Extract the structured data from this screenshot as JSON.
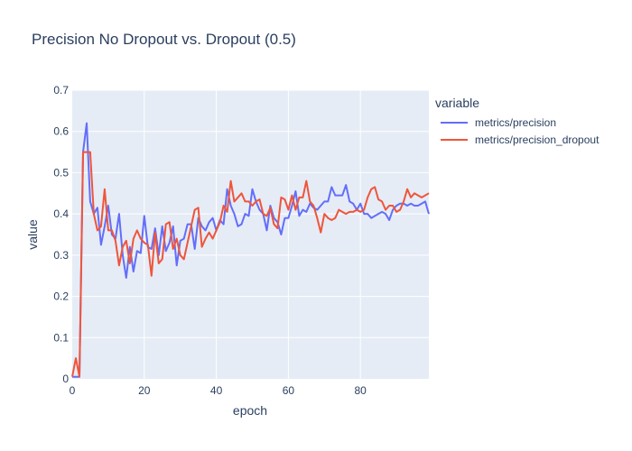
{
  "chart_data": {
    "type": "line",
    "title": "Precision No Dropout vs. Dropout (0.5)",
    "xlabel": "epoch",
    "ylabel": "value",
    "xlim": [
      0,
      99
    ],
    "ylim": [
      0,
      0.7
    ],
    "x_ticks": [
      0,
      20,
      40,
      60,
      80
    ],
    "y_ticks": [
      0,
      0.1,
      0.2,
      0.3,
      0.4,
      0.5,
      0.6,
      0.7
    ],
    "grid": true,
    "legend": {
      "title": "variable",
      "placement": "right"
    },
    "series": [
      {
        "name": "metrics/precision",
        "color": "#636efa",
        "values": [
          0.005,
          0.005,
          0.005,
          0.55,
          0.62,
          0.43,
          0.4,
          0.415,
          0.325,
          0.37,
          0.42,
          0.35,
          0.34,
          0.4,
          0.3,
          0.245,
          0.32,
          0.26,
          0.31,
          0.305,
          0.395,
          0.32,
          0.315,
          0.365,
          0.3,
          0.37,
          0.31,
          0.33,
          0.37,
          0.275,
          0.335,
          0.34,
          0.375,
          0.375,
          0.315,
          0.39,
          0.37,
          0.36,
          0.38,
          0.39,
          0.36,
          0.385,
          0.375,
          0.46,
          0.42,
          0.4,
          0.37,
          0.375,
          0.4,
          0.395,
          0.46,
          0.43,
          0.41,
          0.4,
          0.36,
          0.42,
          0.39,
          0.38,
          0.35,
          0.39,
          0.39,
          0.42,
          0.455,
          0.395,
          0.41,
          0.405,
          0.425,
          0.415,
          0.41,
          0.42,
          0.43,
          0.43,
          0.465,
          0.445,
          0.445,
          0.445,
          0.47,
          0.43,
          0.425,
          0.41,
          0.425,
          0.4,
          0.4,
          0.39,
          0.395,
          0.4,
          0.405,
          0.4,
          0.385,
          0.41,
          0.42,
          0.425,
          0.425,
          0.42,
          0.425,
          0.42,
          0.42,
          0.425,
          0.43,
          0.4
        ]
      },
      {
        "name": "metrics/precision_dropout",
        "color": "#ef553b",
        "values": [
          0.005,
          0.05,
          0.005,
          0.55,
          0.55,
          0.55,
          0.4,
          0.36,
          0.37,
          0.46,
          0.36,
          0.36,
          0.335,
          0.275,
          0.32,
          0.335,
          0.28,
          0.34,
          0.36,
          0.34,
          0.33,
          0.325,
          0.25,
          0.355,
          0.28,
          0.29,
          0.375,
          0.38,
          0.315,
          0.34,
          0.3,
          0.29,
          0.33,
          0.37,
          0.41,
          0.415,
          0.32,
          0.34,
          0.355,
          0.34,
          0.36,
          0.38,
          0.42,
          0.405,
          0.48,
          0.43,
          0.44,
          0.45,
          0.43,
          0.43,
          0.42,
          0.43,
          0.435,
          0.4,
          0.395,
          0.415,
          0.375,
          0.365,
          0.44,
          0.435,
          0.41,
          0.445,
          0.41,
          0.44,
          0.44,
          0.48,
          0.43,
          0.42,
          0.39,
          0.355,
          0.4,
          0.39,
          0.385,
          0.39,
          0.41,
          0.405,
          0.4,
          0.405,
          0.405,
          0.41,
          0.405,
          0.41,
          0.44,
          0.46,
          0.465,
          0.435,
          0.43,
          0.41,
          0.42,
          0.42,
          0.405,
          0.41,
          0.43,
          0.46,
          0.44,
          0.45,
          0.445,
          0.44,
          0.445,
          0.45
        ]
      }
    ]
  }
}
